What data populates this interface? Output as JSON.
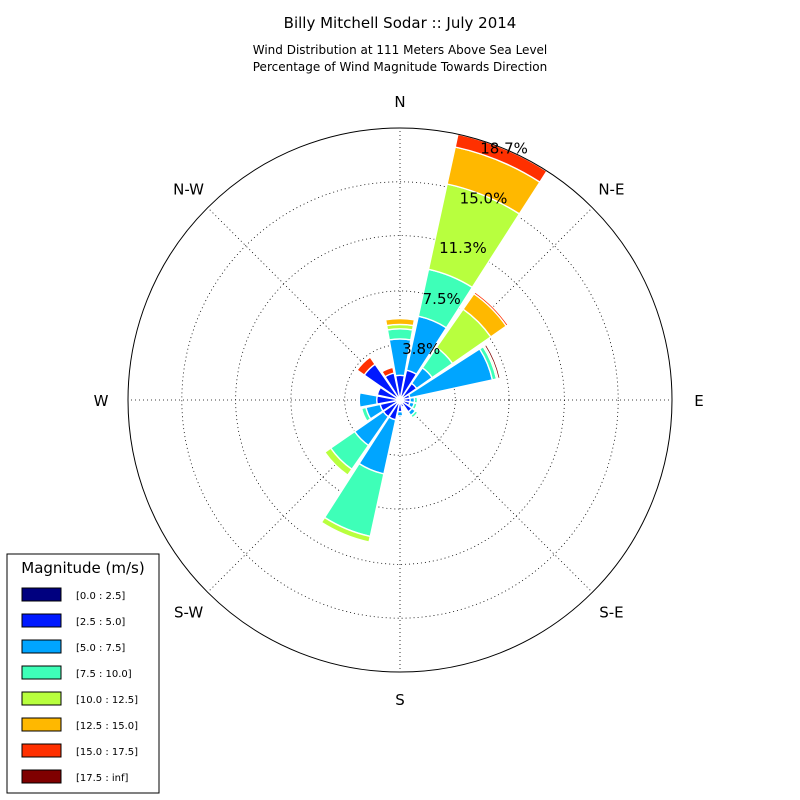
{
  "title": "Billy Mitchell Sodar :: July 2014",
  "subtitle_lines": [
    "Wind Distribution at 111 Meters Above Sea Level",
    "Percentage of Wind Magnitude Towards Direction"
  ],
  "chart_data": {
    "type": "windrose",
    "title": "Billy Mitchell Sodar :: July 2014",
    "direction_labels": [
      "N",
      "N-E",
      "E",
      "S-E",
      "S",
      "S-W",
      "W",
      "N-W"
    ],
    "radial_ticks": [
      3.8,
      7.5,
      11.3,
      15.0,
      18.7
    ],
    "radial_tick_labels": [
      "3.8%",
      "7.5%",
      "11.3%",
      "15.0%",
      "18.7%"
    ],
    "rmax": 18.7,
    "sector_directions_deg": [
      0,
      22.5,
      45,
      67.5,
      90,
      112.5,
      135,
      157.5,
      180,
      202.5,
      225,
      247.5,
      270,
      292.5,
      315,
      337.5
    ],
    "legend_title": "Magnitude (m/s)",
    "bins": [
      {
        "name": "[0.0 : 2.5]",
        "color": "#00007f"
      },
      {
        "name": "[2.5 : 5.0]",
        "color": "#0019ff"
      },
      {
        "name": "[5.0 : 7.5]",
        "color": "#00a5ff"
      },
      {
        "name": "[7.5 : 10.0]",
        "color": "#3effb8"
      },
      {
        "name": "[10.0 : 12.5]",
        "color": "#b8ff3e"
      },
      {
        "name": "[12.5 : 15.0]",
        "color": "#ffb800"
      },
      {
        "name": "[15.0 : 17.5]",
        "color": "#ff3000"
      },
      {
        "name": "[17.5 : inf]",
        "color": "#7f0000"
      }
    ],
    "sectors": [
      {
        "dir": 0,
        "values": [
          0.2,
          1.5,
          2.5,
          0.7,
          0.3,
          0.4,
          0.0,
          0.0
        ]
      },
      {
        "dir": 22.5,
        "values": [
          0.2,
          1.9,
          3.8,
          3.3,
          6.0,
          2.6,
          0.9,
          0.0
        ]
      },
      {
        "dir": 45,
        "values": [
          0.2,
          1.2,
          1.3,
          1.7,
          3.2,
          1.3,
          0.15,
          0.0
        ]
      },
      {
        "dir": 67.5,
        "values": [
          0.1,
          0.6,
          5.8,
          0.3,
          0.1,
          0.0,
          0.0,
          0.15
        ]
      },
      {
        "dir": 90,
        "values": [
          0.1,
          0.6,
          0.3,
          0.2,
          0.0,
          0.0,
          0.0,
          0.0
        ]
      },
      {
        "dir": 112.5,
        "values": [
          0.1,
          0.6,
          0.3,
          0.2,
          0.0,
          0.0,
          0.0,
          0.0
        ]
      },
      {
        "dir": 135,
        "values": [
          0.1,
          0.9,
          0.3,
          0.2,
          0.0,
          0.0,
          0.0,
          0.0
        ]
      },
      {
        "dir": 157.5,
        "values": [
          0.1,
          0.4,
          0.0,
          0.0,
          0.0,
          0.0,
          0.0,
          0.0
        ]
      },
      {
        "dir": 180,
        "values": [
          0.2,
          0.6,
          0.3,
          0.0,
          0.0,
          0.0,
          0.0,
          0.0
        ]
      },
      {
        "dir": 202.5,
        "values": [
          0.2,
          1.2,
          3.8,
          4.4,
          0.4,
          0.0,
          0.0,
          0.0
        ]
      },
      {
        "dir": 225,
        "values": [
          0.2,
          1.2,
          2.4,
          2.0,
          0.5,
          0.0,
          0.0,
          0.0
        ]
      },
      {
        "dir": 247.5,
        "values": [
          0.2,
          1.2,
          1.0,
          0.3,
          0.0,
          0.0,
          0.0,
          0.0
        ]
      },
      {
        "dir": 270,
        "values": [
          0.2,
          1.4,
          1.2,
          0.0,
          0.0,
          0.0,
          0.0,
          0.0
        ]
      },
      {
        "dir": 292.5,
        "values": [
          0.2,
          1.4,
          0.0,
          0.0,
          0.0,
          0.0,
          0.0,
          0.0
        ]
      },
      {
        "dir": 315,
        "values": [
          0.2,
          2.8,
          0.0,
          0.0,
          0.0,
          0.0,
          0.6,
          0.0
        ]
      },
      {
        "dir": 337.5,
        "values": [
          0.2,
          1.7,
          0.0,
          0.0,
          0.0,
          0.0,
          0.4,
          0.0
        ]
      }
    ]
  }
}
